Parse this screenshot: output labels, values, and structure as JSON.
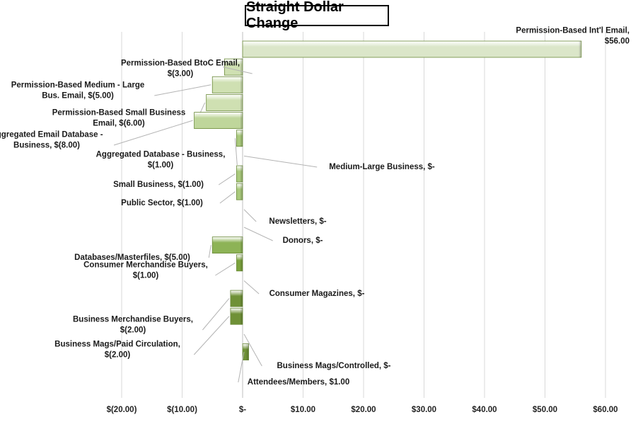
{
  "chart_data": {
    "type": "bar",
    "orientation": "horizontal",
    "title": "Straight Dollar Change",
    "xlabel": "",
    "ylabel": "",
    "xlim": [
      -20,
      60
    ],
    "x_ticks": [
      -20,
      -10,
      0,
      10,
      20,
      30,
      40,
      50,
      60
    ],
    "x_tick_labels": [
      "$(20.00)",
      "$(10.00)",
      "$-",
      "$10.00",
      "$20.00",
      "$30.00",
      "$40.00",
      "$50.00",
      "$60.00"
    ],
    "grid": "vertical",
    "legend": "none",
    "colors": [
      "#dbe6c9",
      "#cfe0b2",
      "#bfd69b",
      "#a9c97c",
      "#8db356",
      "#7ba23d",
      "#6f9137"
    ],
    "categories": [
      "Permission-Based Int'l Email",
      "Permission-Based  BtoC Email",
      "Permission-Based Medium - Large Bus. Email",
      "Permission-Based Small Business Email",
      "Aggregated Email Database - Business",
      "Aggregated Database - Business",
      "Medium-Large Business",
      "Small Business",
      "Public Sector",
      "Newsletters",
      "Donors",
      "Databases/Masterfiles",
      "Consumer Merchandise Buyers",
      "Consumer Magazines",
      "Business Merchandise Buyers",
      "Business Mags/Paid Circulation",
      "Business Mags/Controlled",
      "Attendees/Members"
    ],
    "values": [
      56,
      -3,
      -5,
      -6,
      -8,
      -1,
      0,
      -1,
      -1,
      0,
      0,
      -5,
      -1,
      0,
      -2,
      -2,
      0,
      1
    ],
    "data_labels": [
      [
        "Permission-Based Int'l Email,",
        "$56.00"
      ],
      [
        "Permission-Based  BtoC Email,",
        "$(3.00)"
      ],
      [
        "Permission-Based Medium - Large",
        "Bus. Email,  $(5.00)"
      ],
      [
        "Permission-Based Small Business",
        "Email,  $(6.00)"
      ],
      [
        "Aggregated Email Database -",
        "Business,  $(8.00)"
      ],
      [
        "Aggregated Database - Business,",
        "$(1.00)"
      ],
      [
        "Medium-Large Business,  $-"
      ],
      [
        "Small Business,  $(1.00)"
      ],
      [
        "Public Sector,  $(1.00)"
      ],
      [
        "Newsletters,  $-"
      ],
      [
        "Donors,  $-"
      ],
      [
        "Databases/Masterfiles,  $(5.00)"
      ],
      [
        "Consumer Merchandise Buyers,",
        "$(1.00)"
      ],
      [
        "Consumer Magazines,  $-"
      ],
      [
        "Business Merchandise Buyers,",
        "$(2.00)"
      ],
      [
        "Business Mags/Paid Circulation,",
        "$(2.00)"
      ],
      [
        "Business Mags/Controlled,  $-"
      ],
      [
        "Attendees/Members, $1.00"
      ]
    ]
  }
}
